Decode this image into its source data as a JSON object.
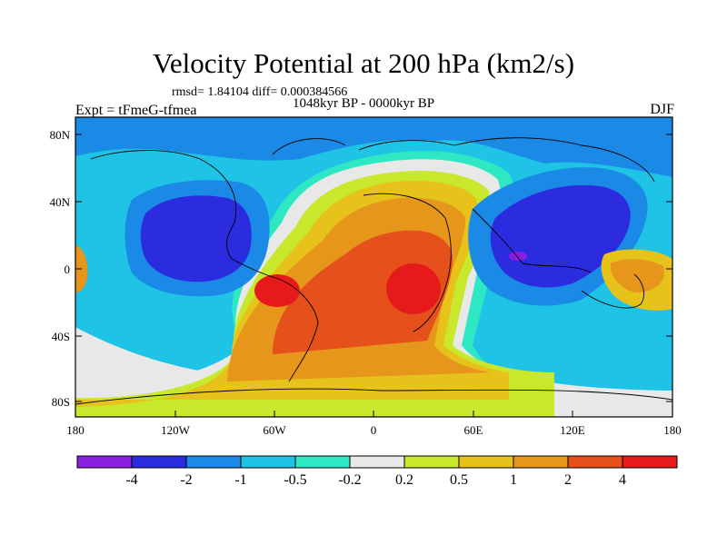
{
  "header": {
    "title": "Velocity Potential at 200 hPa (km2/s)",
    "stats": "rmsd= 1.84104 diff= 0.000384566",
    "period": "1048kyr BP - 0000kyr BP",
    "expt": "Expt = tFmeG-tfmea",
    "season": "DJF"
  },
  "map": {
    "lat_ticks": [
      "80N",
      "40N",
      "0",
      "40S",
      "80S"
    ],
    "lon_ticks": [
      "180",
      "120W",
      "60W",
      "0",
      "60E",
      "120E",
      "180"
    ]
  },
  "colorbar": {
    "labels": [
      "-4",
      "-2",
      "-1",
      "-0.5",
      "-0.2",
      "0.2",
      "0.5",
      "1",
      "2",
      "4"
    ],
    "colors": [
      "#8a1fe0",
      "#2b2be0",
      "#1a8ae6",
      "#1ec3e6",
      "#2ee8c4",
      "#e8e8e8",
      "#c8e82e",
      "#e6c21a",
      "#e6961a",
      "#e6501a",
      "#e61a1a"
    ]
  }
}
